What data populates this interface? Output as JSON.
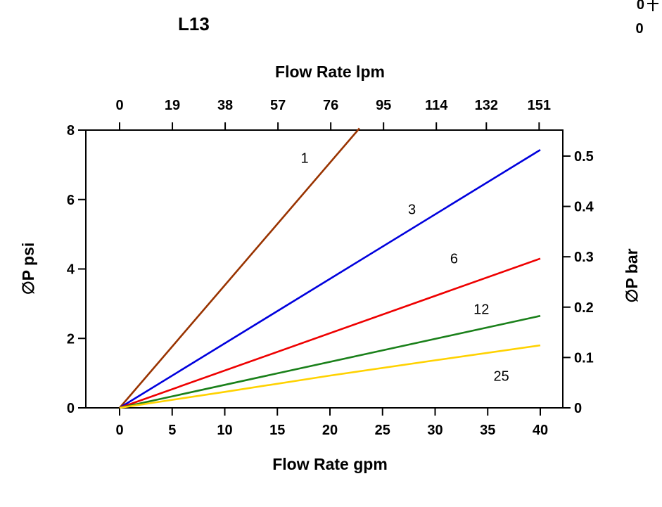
{
  "page": {
    "background": "#ffffff"
  },
  "fragment": {
    "top_label": "0",
    "bottom_label": "0"
  },
  "chart_data": {
    "type": "line",
    "title": "L13",
    "top_axis": {
      "label": "Flow Rate lpm",
      "ticks": [
        0,
        19,
        38,
        57,
        76,
        95,
        114,
        132,
        151
      ],
      "lpm_per_gpm": 3.78541
    },
    "bottom_axis": {
      "label": "Flow Rate gpm",
      "ticks": [
        0,
        5,
        10,
        15,
        20,
        25,
        30,
        35,
        40
      ],
      "range": [
        0,
        40
      ]
    },
    "left_axis": {
      "label": "∅P psi",
      "ticks": [
        0,
        2,
        4,
        6,
        8
      ],
      "range": [
        0,
        8
      ]
    },
    "right_axis": {
      "label": "∅P bar",
      "ticks": [
        0,
        0.1,
        0.2,
        0.3,
        0.4,
        0.5
      ],
      "psi_per_bar": 14.5038
    },
    "series": [
      {
        "name": "1",
        "color": "#993300",
        "width": 2.6,
        "points": [
          [
            0,
            0
          ],
          [
            22.8,
            8.05
          ]
        ],
        "label_pos": [
          17.6,
          7.2
        ]
      },
      {
        "name": "3",
        "color": "#0000dd",
        "width": 2.6,
        "points": [
          [
            0,
            0
          ],
          [
            40,
            7.43
          ]
        ],
        "label_pos": [
          27.8,
          5.72
        ]
      },
      {
        "name": "6",
        "color": "#ee0000",
        "width": 2.6,
        "points": [
          [
            0,
            0
          ],
          [
            40,
            4.3
          ]
        ],
        "label_pos": [
          31.8,
          4.3
        ]
      },
      {
        "name": "12",
        "color": "#1a801a",
        "width": 2.6,
        "points": [
          [
            0,
            0
          ],
          [
            40,
            2.65
          ]
        ],
        "label_pos": [
          34.4,
          2.85
        ]
      },
      {
        "name": "25",
        "color": "#ffd200",
        "width": 2.6,
        "points": [
          [
            0,
            0
          ],
          [
            10,
            0.46
          ],
          [
            20,
            0.93
          ],
          [
            30,
            1.37
          ],
          [
            40,
            1.8
          ]
        ],
        "label_pos": [
          36.3,
          0.92
        ]
      }
    ]
  }
}
